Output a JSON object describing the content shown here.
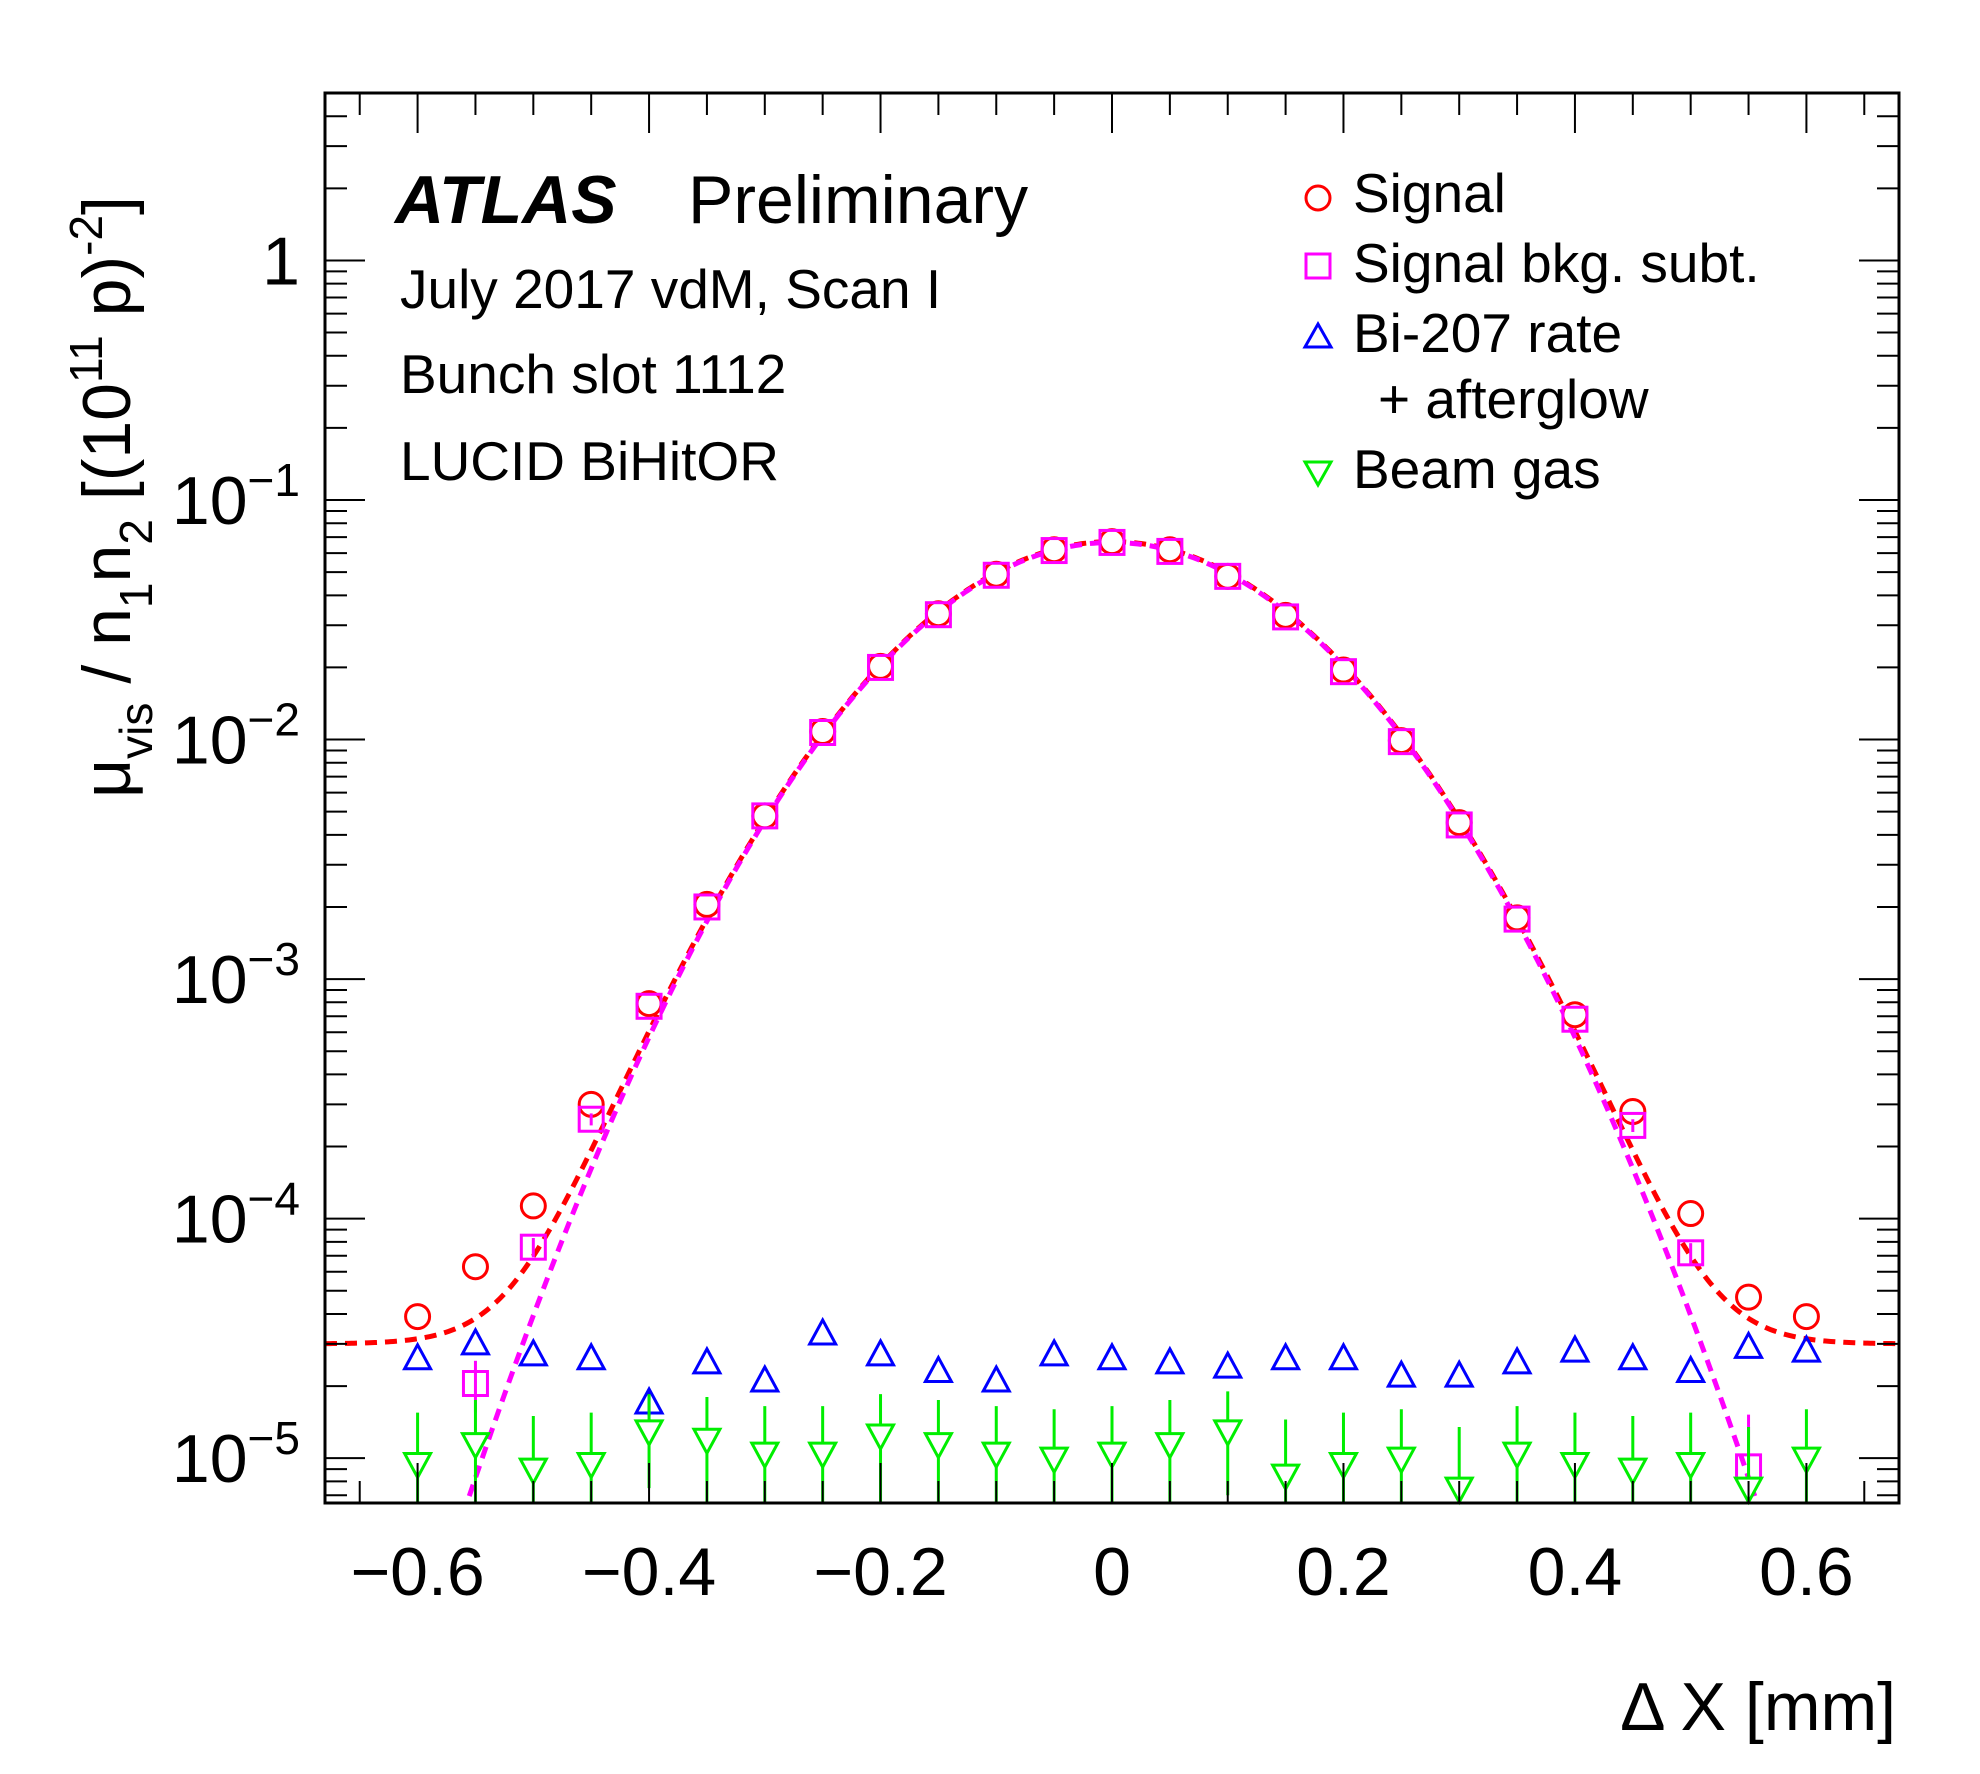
{
  "chart_data": {
    "type": "scatter",
    "title": "",
    "annotations": {
      "experiment": "ATLAS",
      "status": "Preliminary",
      "lines": [
        "July 2017 vdM, Scan I",
        "Bunch slot 1112",
        "LUCID BiHitOR"
      ]
    },
    "xlabel": "Δ X [mm]",
    "ylabel": {
      "mu": "μ",
      "vis": "vis",
      "slash_n": " / n",
      "sub1": "1",
      "n": "n",
      "sub2": "2",
      "open": " [(10",
      "exp11": "11",
      "p": " p)",
      "exp_minus2": "-2",
      "close": "]"
    },
    "xlim": [
      -0.68,
      0.68
    ],
    "ylim": [
      6.5e-06,
      5.0
    ],
    "yscale": "log",
    "x_ticks": [
      {
        "v": -0.6,
        "label": "−0.6"
      },
      {
        "v": -0.4,
        "label": "−0.4"
      },
      {
        "v": -0.2,
        "label": "−0.2"
      },
      {
        "v": 0,
        "label": "0"
      },
      {
        "v": 0.2,
        "label": "0.2"
      },
      {
        "v": 0.4,
        "label": "0.4"
      },
      {
        "v": 0.6,
        "label": "0.6"
      }
    ],
    "y_ticks": [
      {
        "v": 1,
        "base": "1",
        "exp": ""
      },
      {
        "v": 0.1,
        "base": "10",
        "exp": "−1"
      },
      {
        "v": 0.01,
        "base": "10",
        "exp": "−2"
      },
      {
        "v": 0.001,
        "base": "10",
        "exp": "−3"
      },
      {
        "v": 0.0001,
        "base": "10",
        "exp": "−4"
      },
      {
        "v": 1e-05,
        "base": "10",
        "exp": "−5"
      }
    ],
    "grid": false,
    "legend_position": "top-right",
    "legend": [
      {
        "label": "Signal",
        "series": "signal"
      },
      {
        "label": "Signal bkg. subt.",
        "series": "signal_bkg_subt"
      },
      {
        "label": "Bi-207 rate",
        "series": "bi207"
      },
      {
        "label": "+ afterglow",
        "series": ""
      },
      {
        "label": "Beam gas",
        "series": "beam_gas"
      }
    ],
    "x": [
      -0.6,
      -0.55,
      -0.5,
      -0.45,
      -0.4,
      -0.35,
      -0.3,
      -0.25,
      -0.2,
      -0.15,
      -0.1,
      -0.05,
      0,
      0.05,
      0.1,
      0.15,
      0.2,
      0.25,
      0.3,
      0.35,
      0.4,
      0.45,
      0.5,
      0.55,
      0.6
    ],
    "series": [
      {
        "name": "Signal",
        "key": "signal",
        "marker": "circle",
        "color": "#ff0000",
        "values": [
          3.9e-05,
          6.3e-05,
          0.000113,
          0.0003,
          0.00079,
          0.00205,
          0.0048,
          0.0108,
          0.0202,
          0.0335,
          0.049,
          0.062,
          0.067,
          0.062,
          0.048,
          0.033,
          0.0195,
          0.0099,
          0.0045,
          0.0018,
          0.00071,
          0.00028,
          0.000105,
          4.7e-05,
          3.9e-05
        ]
      },
      {
        "name": "Signal bkg. subt.",
        "key": "signal_bkg_subt",
        "marker": "square",
        "color": "#ff00ff",
        "x": [
          -0.55,
          -0.5,
          -0.45,
          -0.4,
          -0.35,
          -0.3,
          -0.25,
          -0.2,
          -0.15,
          -0.1,
          -0.05,
          0,
          0.05,
          0.1,
          0.15,
          0.2,
          0.25,
          0.3,
          0.35,
          0.4,
          0.45,
          0.5,
          0.55
        ],
        "values": [
          2.05e-05,
          7.6e-05,
          0.00026,
          0.00077,
          0.002,
          0.0048,
          0.0107,
          0.02,
          0.0332,
          0.0485,
          0.0615,
          0.0665,
          0.061,
          0.048,
          0.0325,
          0.0192,
          0.0098,
          0.0044,
          0.00178,
          0.00068,
          0.000245,
          7.2e-05,
          9.2e-06
        ],
        "errors": [
          5e-06,
          7e-06,
          1.5e-05,
          0,
          0,
          0,
          0,
          0,
          0,
          0,
          0,
          0,
          0,
          0,
          0,
          0,
          0,
          0,
          0,
          0,
          1.5e-05,
          7e-06,
          6e-06
        ]
      },
      {
        "name": "Bi-207 rate + afterglow",
        "key": "bi207",
        "marker": "triangle-up",
        "color": "#0000ff",
        "values": [
          2.6e-05,
          3e-05,
          2.7e-05,
          2.6e-05,
          1.7e-05,
          2.5e-05,
          2.1e-05,
          3.3e-05,
          2.7e-05,
          2.3e-05,
          2.1e-05,
          2.7e-05,
          2.6e-05,
          2.5e-05,
          2.4e-05,
          2.6e-05,
          2.6e-05,
          2.2e-05,
          2.2e-05,
          2.5e-05,
          2.8e-05,
          2.6e-05,
          2.3e-05,
          2.9e-05,
          2.8e-05
        ],
        "errors": [
          0,
          0,
          0,
          0,
          2e-06,
          0,
          0,
          0,
          0,
          0,
          0,
          0,
          0,
          0,
          0,
          0,
          0,
          0,
          0,
          0,
          0,
          0,
          0,
          0,
          0
        ]
      },
      {
        "name": "Beam gas",
        "key": "beam_gas",
        "marker": "triangle-down",
        "color": "#00ee00",
        "values": [
          9.5e-06,
          1.15e-05,
          9e-06,
          9.5e-06,
          1.3e-05,
          1.2e-05,
          1.05e-05,
          1.05e-05,
          1.25e-05,
          1.15e-05,
          1.05e-05,
          1e-05,
          1.05e-05,
          1.15e-05,
          1.3e-05,
          8.5e-06,
          9.5e-06,
          1e-05,
          7.5e-06,
          1.05e-05,
          9.5e-06,
          9e-06,
          9.5e-06,
          7.5e-06,
          1e-05
        ],
        "errors": [
          6e-06,
          6e-06,
          6e-06,
          6e-06,
          5.5e-06,
          6e-06,
          6e-06,
          6e-06,
          6e-06,
          6e-06,
          6e-06,
          6e-06,
          6e-06,
          6e-06,
          6e-06,
          6e-06,
          6e-06,
          6e-06,
          6e-06,
          6e-06,
          6e-06,
          6e-06,
          6e-06,
          6e-06,
          6e-06
        ]
      }
    ],
    "fits": [
      {
        "key": "signal_fit",
        "color": "#ff0000",
        "style": "dashed",
        "peak": 0.067,
        "sigma": 0.1297,
        "constant": 3e-05
      },
      {
        "key": "signal_bkg_subt_fit",
        "color": "#ff00ff",
        "style": "dashed",
        "peak": 0.0665,
        "sigma": 0.1297,
        "constant": 0
      }
    ]
  }
}
